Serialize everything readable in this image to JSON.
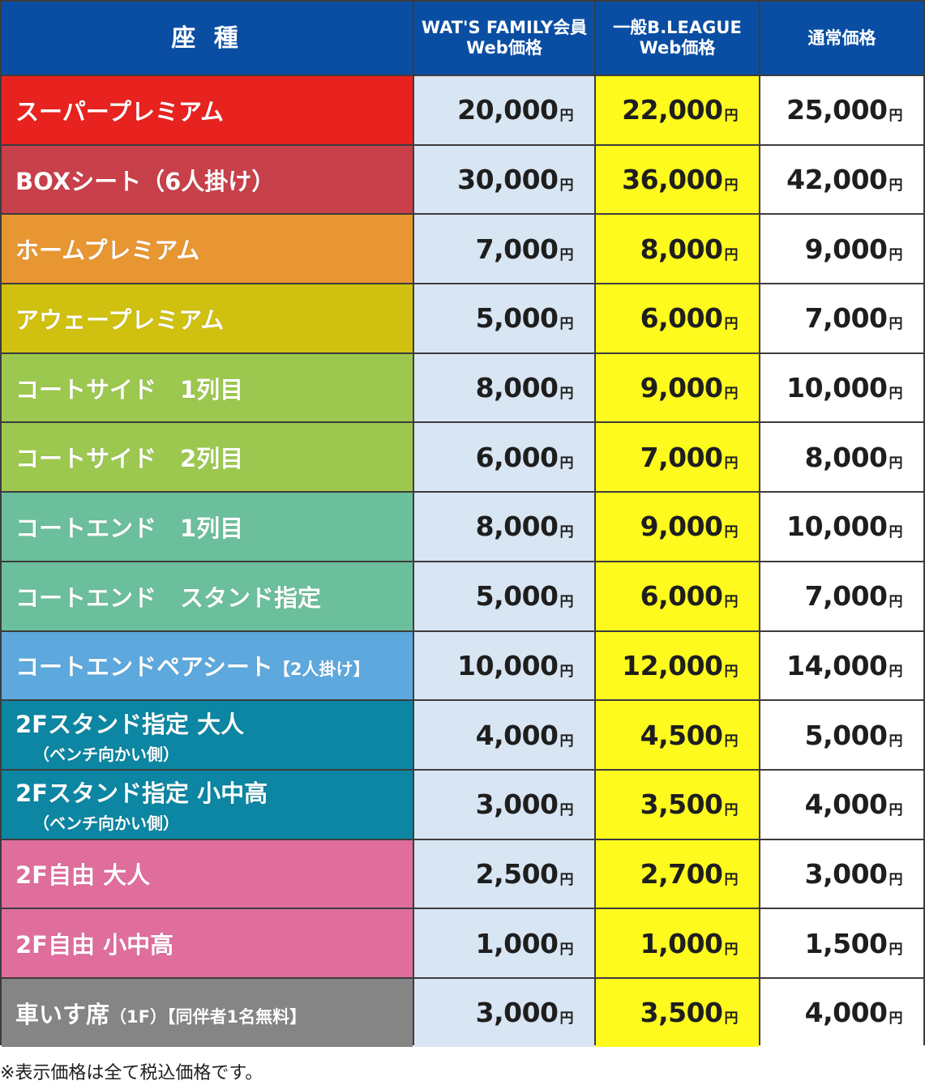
{
  "header": {
    "seat": "座 種",
    "col1_line1": "WAT'S FAMILY会員",
    "col1_line2": "Web価格",
    "col2_line1": "一般B.LEAGUE",
    "col2_line2": "Web価格",
    "col3": "通常価格"
  },
  "yen": "円",
  "colors": {
    "header": "#0a4ea3",
    "family_col": "#d8e5f3",
    "bleague_col": "#fffa1e",
    "regular_col": "#ffffff"
  },
  "rows": [
    {
      "seat": "スーパープレミアム",
      "color": "#e8231f",
      "family": "20,000",
      "bleague": "22,000",
      "regular": "25,000"
    },
    {
      "seat": "BOXシート（6人掛け）",
      "color": "#c8404a",
      "family": "30,000",
      "bleague": "36,000",
      "regular": "42,000"
    },
    {
      "seat": "ホームプレミアム",
      "color": "#e89632",
      "family": "7,000",
      "bleague": "8,000",
      "regular": "9,000"
    },
    {
      "seat": "アウェープレミアム",
      "color": "#d0c010",
      "family": "5,000",
      "bleague": "6,000",
      "regular": "7,000"
    },
    {
      "seat": "コートサイド　1列目",
      "color": "#9dc84f",
      "family": "8,000",
      "bleague": "9,000",
      "regular": "10,000"
    },
    {
      "seat": "コートサイド　2列目",
      "color": "#9dc84f",
      "family": "6,000",
      "bleague": "7,000",
      "regular": "8,000"
    },
    {
      "seat": "コートエンド　1列目",
      "color": "#6cbf9c",
      "family": "8,000",
      "bleague": "9,000",
      "regular": "10,000"
    },
    {
      "seat": "コートエンド　スタンド指定",
      "color": "#6cbf9c",
      "family": "5,000",
      "bleague": "6,000",
      "regular": "7,000"
    },
    {
      "seat": "コートエンドペアシート",
      "seat_small": "【2人掛け】",
      "color": "#5da8dd",
      "family": "10,000",
      "bleague": "12,000",
      "regular": "14,000"
    },
    {
      "seat": "2Fスタンド指定 大人",
      "seat_sub": "（ベンチ向かい側）",
      "color": "#0c86a2",
      "family": "4,000",
      "bleague": "4,500",
      "regular": "5,000"
    },
    {
      "seat": "2Fスタンド指定 小中高",
      "seat_sub": "（ベンチ向かい側）",
      "color": "#0c86a2",
      "family": "3,000",
      "bleague": "3,500",
      "regular": "4,000"
    },
    {
      "seat": "2F自由 大人",
      "color": "#df6e9d",
      "family": "2,500",
      "bleague": "2,700",
      "regular": "3,000"
    },
    {
      "seat": "2F自由 小中高",
      "color": "#df6e9d",
      "family": "1,000",
      "bleague": "1,000",
      "regular": "1,500"
    },
    {
      "seat": "車いす席",
      "seat_small": "（1F）【同伴者1名無料】",
      "color": "#858585",
      "family": "3,000",
      "bleague": "3,500",
      "regular": "4,000"
    }
  ],
  "note": "※表示価格は全て税込価格です。"
}
